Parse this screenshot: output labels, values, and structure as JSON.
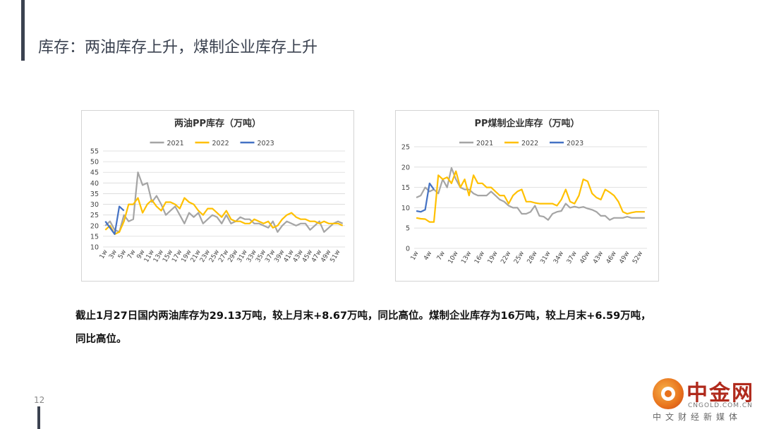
{
  "slide": {
    "title": "库存：两油库存上升，煤制企业库存上升",
    "page_number": "12",
    "summary_line1": "截止1月27日国内两油库存为29.13万吨，较上月末+8.67万吨，同比高位。煤制企业库存为16万吨，较上月末+6.59万吨，",
    "summary_line2": "同比高位。"
  },
  "logo": {
    "name": "中金网",
    "domain": "CNGOLD.COM.CN",
    "tagline": "中文财经新媒体",
    "colors": {
      "brand": "#b02a1c",
      "accent": "#e8721c"
    }
  },
  "series_colors": {
    "2021": "#a5a5a5",
    "2022": "#ffc000",
    "2023": "#4472c4"
  },
  "chart_data": [
    {
      "type": "line",
      "title": "两油PP库存（万吨）",
      "legend": [
        "2021",
        "2022",
        "2023"
      ],
      "legend_position": "top",
      "ylim": [
        10,
        55
      ],
      "yticks": [
        10,
        15,
        20,
        25,
        30,
        35,
        40,
        45,
        50,
        55
      ],
      "x_count": 52,
      "xticks": [
        "1w",
        "3w",
        "5w",
        "7w",
        "9w",
        "11w",
        "13w",
        "15w",
        "17w",
        "19w",
        "21w",
        "23w",
        "25w",
        "27w",
        "29w",
        "31w",
        "33w",
        "35w",
        "37w",
        "39w",
        "41w",
        "43w",
        "45w",
        "47w",
        "49w",
        "51w"
      ],
      "grid": true,
      "series": [
        {
          "name": "2021",
          "values": [
            20,
            22,
            18,
            17,
            25,
            22,
            23,
            45,
            39,
            40,
            31,
            34,
            30,
            25,
            27,
            29,
            25,
            21,
            26,
            24,
            26,
            21,
            23,
            25,
            24,
            21,
            25,
            21,
            22,
            24,
            23,
            23,
            21,
            21,
            20,
            19,
            22,
            17,
            20,
            22,
            21,
            20,
            21,
            21,
            18,
            20,
            22,
            17,
            19,
            21,
            22,
            21
          ]
        },
        {
          "name": "2022",
          "values": [
            18,
            20,
            16,
            17,
            22,
            30,
            30,
            33,
            26,
            30,
            32,
            29,
            27,
            31,
            31,
            30,
            28,
            33,
            31,
            30,
            27,
            25,
            28,
            28,
            26,
            24,
            27,
            23,
            22,
            22,
            21,
            21,
            23,
            22,
            21,
            22,
            19,
            20,
            23,
            25,
            26,
            24,
            23,
            23,
            22,
            22,
            21,
            22,
            21,
            21,
            21,
            20
          ]
        },
        {
          "name": "2023",
          "values": [
            22,
            19,
            16,
            29,
            27
          ]
        }
      ]
    },
    {
      "type": "line",
      "title": "PP煤制企业库存（万吨）",
      "legend": [
        "2021",
        "2022",
        "2023"
      ],
      "legend_position": "top",
      "ylim": [
        0,
        25
      ],
      "yticks": [
        0,
        5,
        10,
        15,
        20,
        25
      ],
      "x_count": 53,
      "xticks": [
        "1w",
        "4w",
        "7w",
        "10w",
        "13w",
        "16w",
        "19w",
        "22w",
        "25w",
        "28w",
        "31w",
        "34w",
        "37w",
        "40w",
        "43w",
        "46w",
        "49w",
        "52w"
      ],
      "grid": true,
      "series": [
        {
          "name": "2021",
          "values": [
            12.5,
            13,
            15,
            14,
            14.5,
            13.5,
            17,
            15,
            19.8,
            17,
            15,
            14.5,
            14.5,
            13.5,
            13,
            13,
            13,
            14,
            13,
            12,
            11.5,
            10.5,
            10,
            10,
            8.5,
            8.5,
            9,
            10.5,
            8,
            7.8,
            7,
            8.5,
            9,
            9.2,
            11,
            10,
            10.3,
            10,
            10.2,
            9.8,
            9.5,
            9,
            8,
            8,
            7,
            7.5,
            7.5,
            7.5,
            7.8,
            7.5,
            7.5,
            7.5,
            7.5
          ]
        },
        {
          "name": "2022",
          "values": [
            7.5,
            7.3,
            7.2,
            6.5,
            6.5,
            18,
            17,
            17.5,
            16,
            19,
            15,
            17,
            13,
            18,
            16,
            16,
            15,
            15,
            14,
            13,
            13,
            11,
            13,
            14,
            14.5,
            11.5,
            11.5,
            11.2,
            11,
            11,
            11,
            11,
            10.5,
            12,
            14.5,
            11.5,
            11,
            13,
            17,
            16.5,
            13.5,
            12.5,
            12,
            14.5,
            13.8,
            13,
            11.5,
            9,
            8.5,
            8.8,
            9,
            9,
            9
          ]
        },
        {
          "name": "2023",
          "values": [
            9.2,
            9,
            9.5,
            16,
            14.5
          ]
        }
      ]
    }
  ]
}
